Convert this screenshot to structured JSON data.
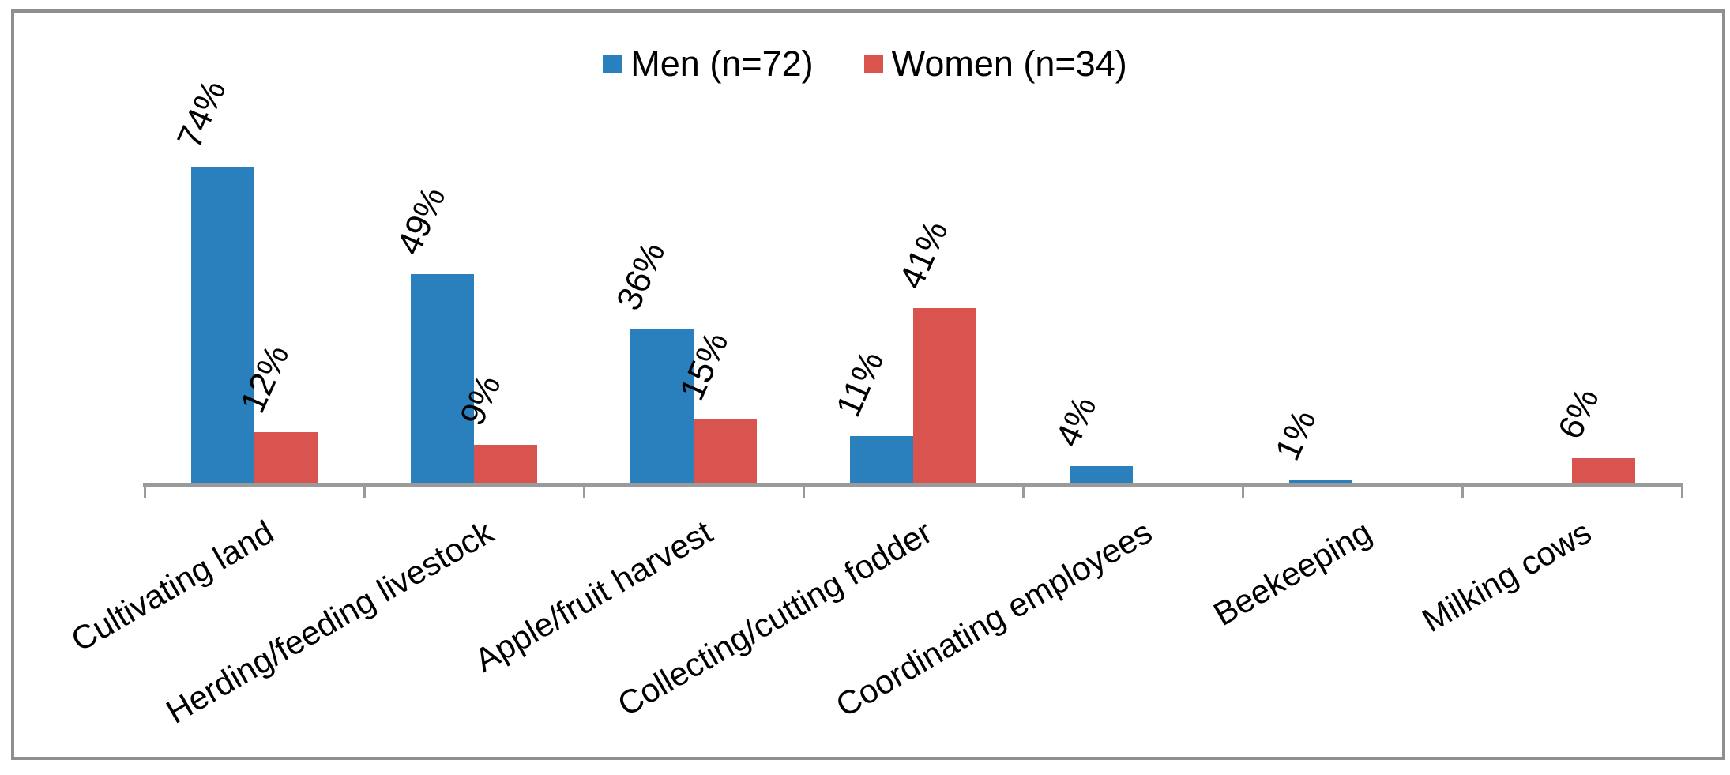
{
  "chart_data": {
    "type": "bar",
    "title": "",
    "categories": [
      "Cultivating land",
      "Herding/feeding livestock",
      "Apple/fruit harvest",
      "Collecting/cutting fodder",
      "Coordinating employees",
      "Beekeeping",
      "Milking cows"
    ],
    "series": [
      {
        "name": "Men (n=72)",
        "color": "#2980bd",
        "values": [
          74,
          49,
          36,
          11,
          4,
          1,
          null
        ]
      },
      {
        "name": "Women (n=34)",
        "color": "#d9534f",
        "values": [
          12,
          9,
          15,
          41,
          null,
          null,
          6
        ]
      }
    ],
    "value_label_suffix": "%",
    "ylim": [
      0,
      100
    ],
    "grid": false,
    "y_axis_visible": false,
    "legend_position": "top-center",
    "axis_color": "#9a9a9a",
    "frame_color": "#8f8f8f",
    "value_label_rotation_deg": -66,
    "category_label_rotation_deg": -30
  }
}
